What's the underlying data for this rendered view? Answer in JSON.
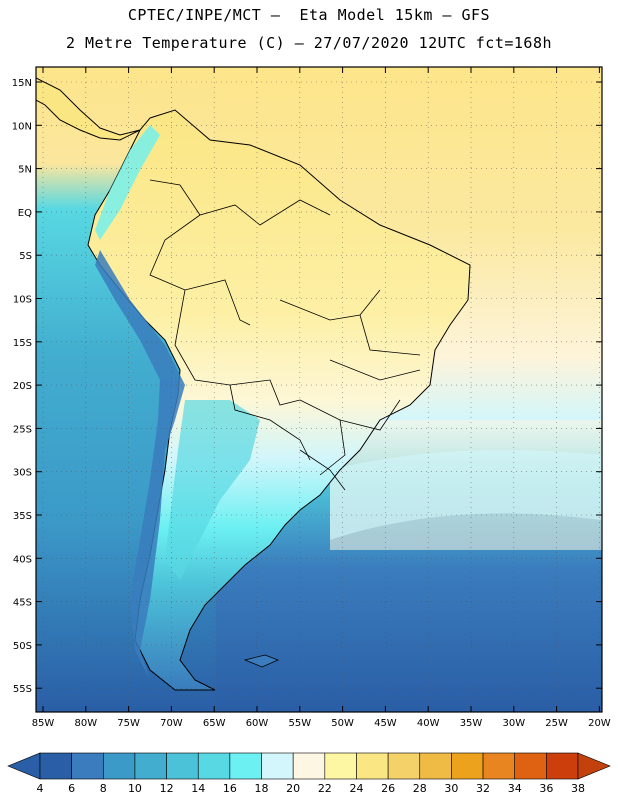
{
  "header": {
    "line1": "CPTEC/INPE/MCT –  Eta Model 15km – GFS",
    "line2": "2 Metre Temperature (C) – 27/07/2020 12UTC fct=168h"
  },
  "map": {
    "lat_labels": [
      "15N",
      "10N",
      "5N",
      "EQ",
      "5S",
      "10S",
      "15S",
      "20S",
      "25S",
      "30S",
      "35S",
      "40S",
      "45S",
      "50S",
      "55S"
    ],
    "lon_labels": [
      "85W",
      "80W",
      "75W",
      "70W",
      "65W",
      "60W",
      "55W",
      "50W",
      "45W",
      "40W",
      "35W",
      "30W",
      "25W",
      "20W"
    ],
    "lat_range": [
      15,
      -57
    ],
    "lon_range": [
      -85,
      -20
    ]
  },
  "colorbar": {
    "labels": [
      "4",
      "6",
      "8",
      "10",
      "12",
      "14",
      "16",
      "18",
      "20",
      "22",
      "24",
      "26",
      "28",
      "30",
      "32",
      "34",
      "36",
      "38"
    ],
    "colors": [
      "#2a5ea6",
      "#3a7cbd",
      "#3c9ac8",
      "#42adcf",
      "#4cc2d8",
      "#58d8e2",
      "#6cf0f2",
      "#d2f6fb",
      "#fdf6e2",
      "#fdf7a3",
      "#fbe684",
      "#f5d16a",
      "#f0bb45",
      "#eda21e",
      "#e88520",
      "#df6212",
      "#cc3f0c"
    ],
    "low_color": "#2a5ea6",
    "high_color": "#c2410c"
  }
}
